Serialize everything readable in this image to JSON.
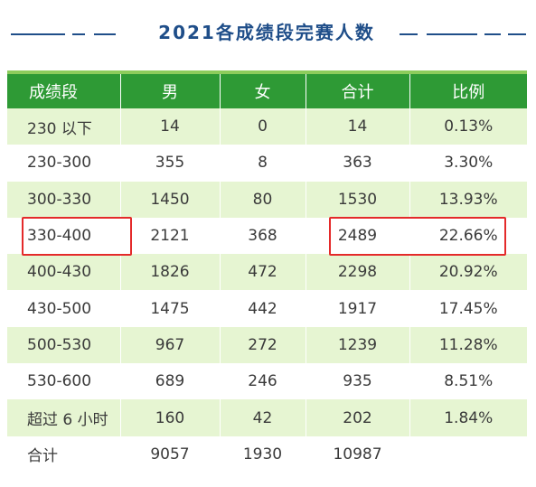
{
  "title": "2021各成绩段完赛人数",
  "colors": {
    "title": "#1f4e89",
    "header_bg": "#2e9a35",
    "row_light": "#e6f5d2",
    "highlight": "#e42a2a"
  },
  "table": {
    "headers": [
      "成绩段",
      "男",
      "女",
      "合计",
      "比例"
    ],
    "rows": [
      [
        "230 以下",
        "14",
        "0",
        "14",
        "0.13%"
      ],
      [
        "230-300",
        "355",
        "8",
        "363",
        "3.30%"
      ],
      [
        "300-330",
        "1450",
        "80",
        "1530",
        "13.93%"
      ],
      [
        "330-400",
        "2121",
        "368",
        "2489",
        "22.66%"
      ],
      [
        "400-430",
        "1826",
        "472",
        "2298",
        "20.92%"
      ],
      [
        "430-500",
        "1475",
        "442",
        "1917",
        "17.45%"
      ],
      [
        "500-530",
        "967",
        "272",
        "1239",
        "11.28%"
      ],
      [
        "530-600",
        "689",
        "246",
        "935",
        "8.51%"
      ],
      [
        "超过 6 小时",
        "160",
        "42",
        "202",
        "1.84%"
      ],
      [
        "合计",
        "9057",
        "1930",
        "10987",
        ""
      ]
    ]
  }
}
